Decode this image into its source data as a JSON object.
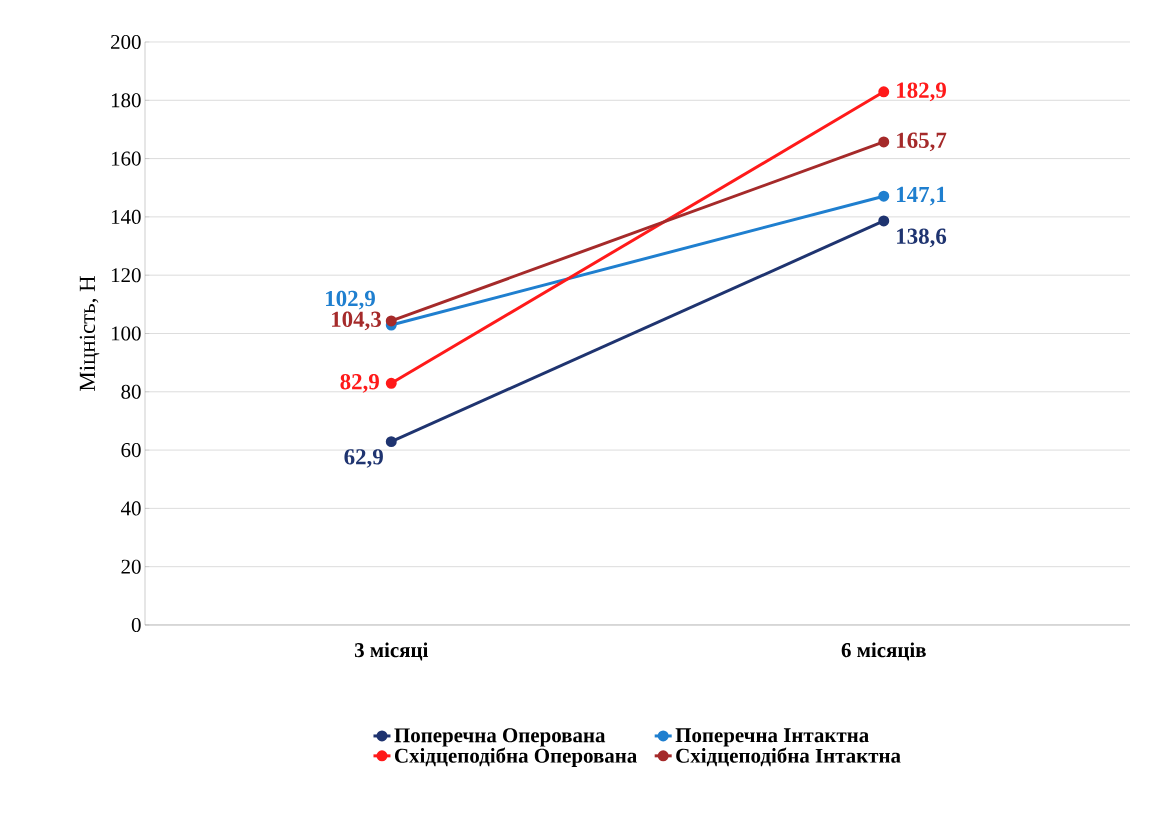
{
  "chart_data": {
    "type": "line",
    "ylabel": "Міцність, Н",
    "categories": [
      "3 місяці",
      "6 місяців"
    ],
    "series": [
      {
        "name": "Поперечна Оперована",
        "color": "#1f3470",
        "values": [
          62.9,
          138.6
        ],
        "value_labels": [
          "62,9",
          "138,6"
        ]
      },
      {
        "name": "Поперечна Інтактна",
        "color": "#1f7fcf",
        "values": [
          102.9,
          147.1
        ],
        "value_labels": [
          "102,9",
          "147,1"
        ]
      },
      {
        "name": "Східцеподібна Оперована",
        "color": "#ff1a1a",
        "values": [
          82.9,
          182.9
        ],
        "value_labels": [
          "82,9",
          "182,9"
        ]
      },
      {
        "name": "Східцеподібна Інтактна",
        "color": "#a52a2a",
        "values": [
          104.3,
          165.7
        ],
        "value_labels": [
          "104,3",
          "165,7"
        ]
      }
    ],
    "ylim": [
      0,
      200
    ],
    "yticks": [
      0,
      20,
      40,
      60,
      80,
      100,
      120,
      140,
      160,
      180,
      200
    ],
    "grid": "y",
    "legend": "bottom",
    "marker": "circle",
    "line_style": "solid"
  }
}
